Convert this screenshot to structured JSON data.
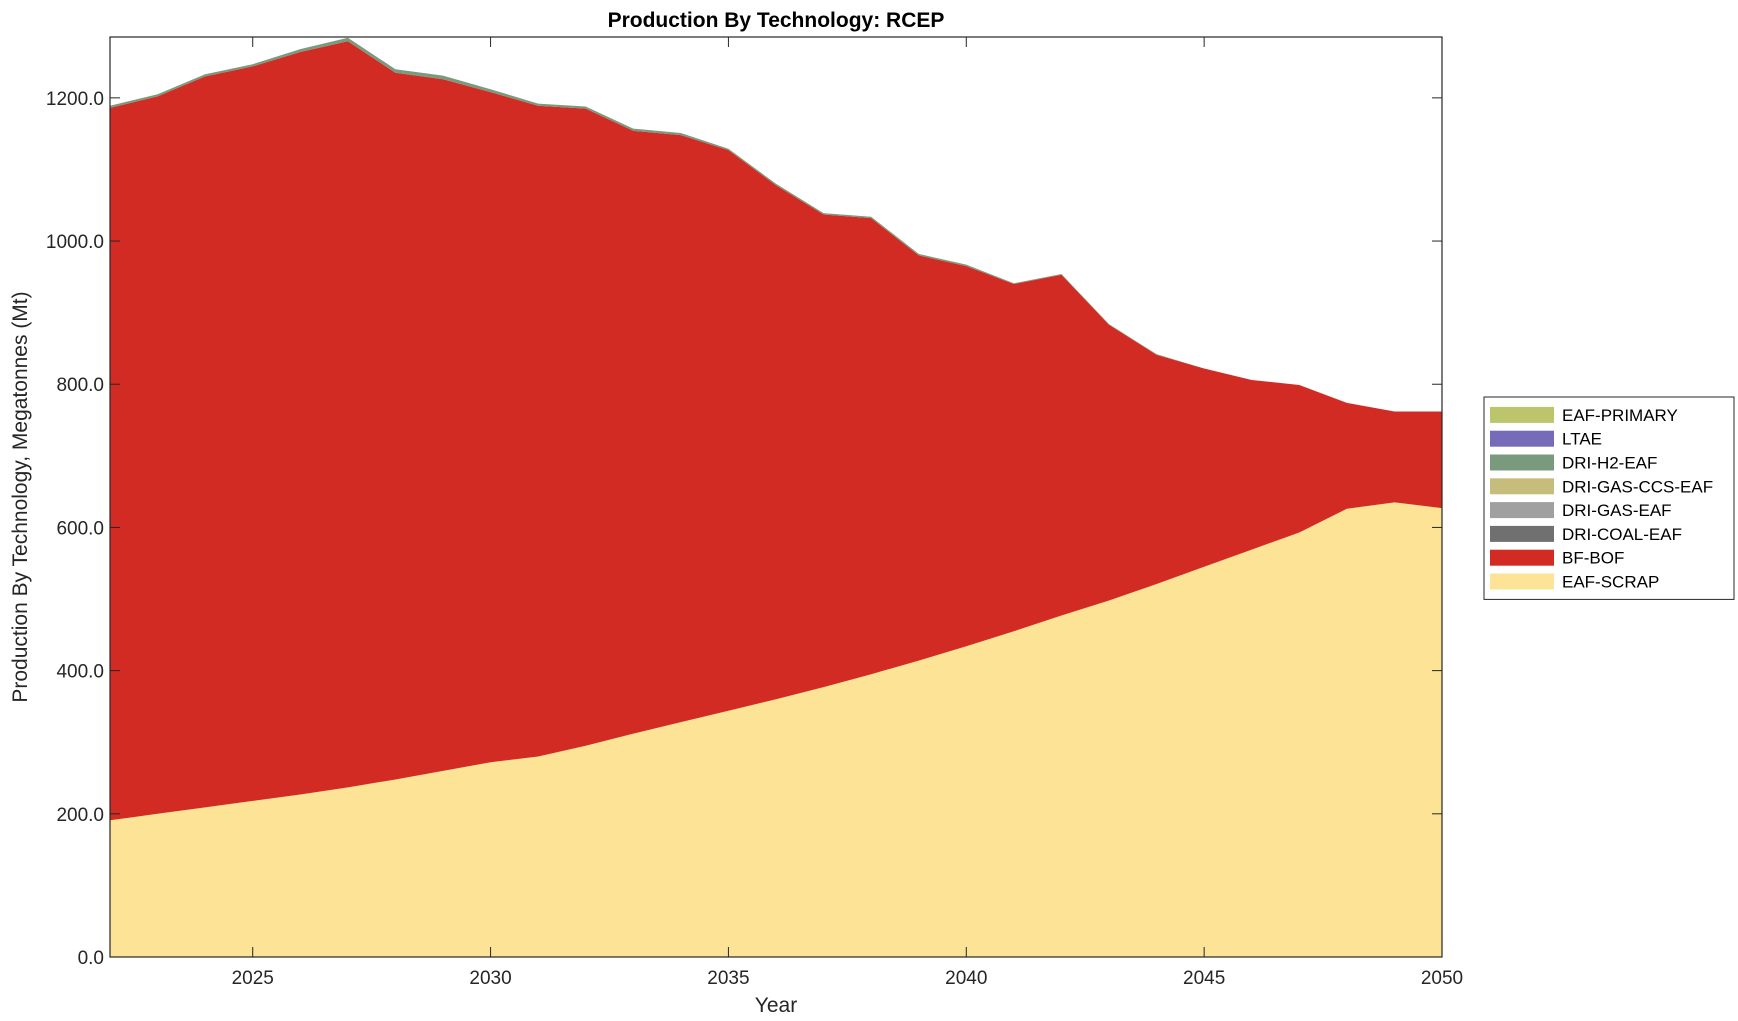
{
  "chart_data": {
    "type": "area",
    "stacked": true,
    "title": "Production By Technology: RCEP",
    "xlabel": "Year",
    "ylabel": "Production By Technology, Megatonnes (Mt)",
    "xlim": [
      2022,
      2050
    ],
    "ylim": [
      0,
      1285
    ],
    "xticks": [
      2025,
      2030,
      2035,
      2040,
      2045,
      2050
    ],
    "xtick_labels": [
      "2025",
      "2030",
      "2035",
      "2040",
      "2045",
      "2050"
    ],
    "yticks": [
      0,
      200,
      400,
      600,
      800,
      1000,
      1200
    ],
    "ytick_labels": [
      "0.0",
      "200.0",
      "400.0",
      "600.0",
      "800.0",
      "1000.0",
      "1200.0"
    ],
    "legend_position": "right",
    "x": [
      2022,
      2023,
      2024,
      2025,
      2026,
      2027,
      2028,
      2029,
      2030,
      2031,
      2032,
      2033,
      2034,
      2035,
      2036,
      2037,
      2038,
      2039,
      2040,
      2041,
      2042,
      2043,
      2044,
      2045,
      2046,
      2047,
      2048,
      2049,
      2050
    ],
    "series": [
      {
        "name": "EAF-SCRAP",
        "color": "#FDE396",
        "values": [
          191,
          200,
          209,
          218,
          227,
          237,
          248,
          260,
          272,
          280,
          295,
          312,
          328,
          344,
          360,
          377,
          395,
          414,
          434,
          455,
          477,
          498,
          521,
          545,
          569,
          593,
          626,
          635,
          627
        ]
      },
      {
        "name": "BF-BOF",
        "color": "#D22B23",
        "values": [
          995,
          1002,
          1021,
          1026,
          1037,
          1042,
          987,
          966,
          936,
          909,
          890,
          842,
          820,
          783,
          718,
          660,
          637,
          566,
          531,
          485,
          476,
          385,
          320,
          277,
          237,
          206,
          148,
          127,
          135
        ]
      },
      {
        "name": "DRI-COAL-EAF",
        "color": "#707070",
        "values": [
          0,
          0,
          0,
          0,
          0,
          0,
          0,
          0,
          0,
          0,
          0,
          0,
          0,
          0,
          0,
          0,
          0,
          0,
          0,
          0,
          0,
          0,
          0,
          0,
          0,
          0,
          0,
          0,
          0
        ]
      },
      {
        "name": "DRI-GAS-EAF",
        "color": "#A0A0A0",
        "values": [
          0,
          0,
          0,
          0,
          0,
          0,
          0,
          0,
          0,
          0,
          0,
          0,
          0,
          0,
          0,
          0,
          0,
          0,
          0,
          0,
          0,
          0,
          0,
          0,
          0,
          0,
          0,
          0,
          0
        ]
      },
      {
        "name": "DRI-GAS-CCS-EAF",
        "color": "#C6BD7D",
        "values": [
          0,
          0,
          0,
          0,
          0,
          0,
          0,
          0,
          0,
          0,
          0,
          0,
          0,
          0,
          0,
          0,
          0,
          0,
          0,
          0,
          0,
          0,
          0,
          0,
          0,
          0,
          0,
          0,
          0
        ]
      },
      {
        "name": "DRI-H2-EAF",
        "color": "#7A9A7E",
        "values": [
          3,
          3,
          3,
          3,
          4,
          5,
          5,
          5,
          4,
          3,
          3,
          3,
          3,
          2,
          2,
          2,
          2,
          2,
          2,
          1,
          1,
          1,
          1,
          0,
          0,
          0,
          0,
          0,
          0
        ]
      },
      {
        "name": "LTAE",
        "color": "#756BB8",
        "values": [
          0,
          0,
          0,
          0,
          0,
          0,
          0,
          0,
          0,
          0,
          0,
          0,
          0,
          0,
          0,
          0,
          0,
          0,
          0,
          0,
          0,
          0,
          0,
          0,
          0,
          0,
          0,
          0,
          0
        ]
      },
      {
        "name": "EAF-PRIMARY",
        "color": "#BCC56C",
        "values": [
          0,
          0,
          0,
          0,
          0,
          0,
          0,
          0,
          0,
          0,
          0,
          0,
          0,
          0,
          0,
          0,
          0,
          0,
          0,
          0,
          0,
          0,
          0,
          0,
          0,
          0,
          0,
          0,
          0
        ]
      }
    ]
  }
}
